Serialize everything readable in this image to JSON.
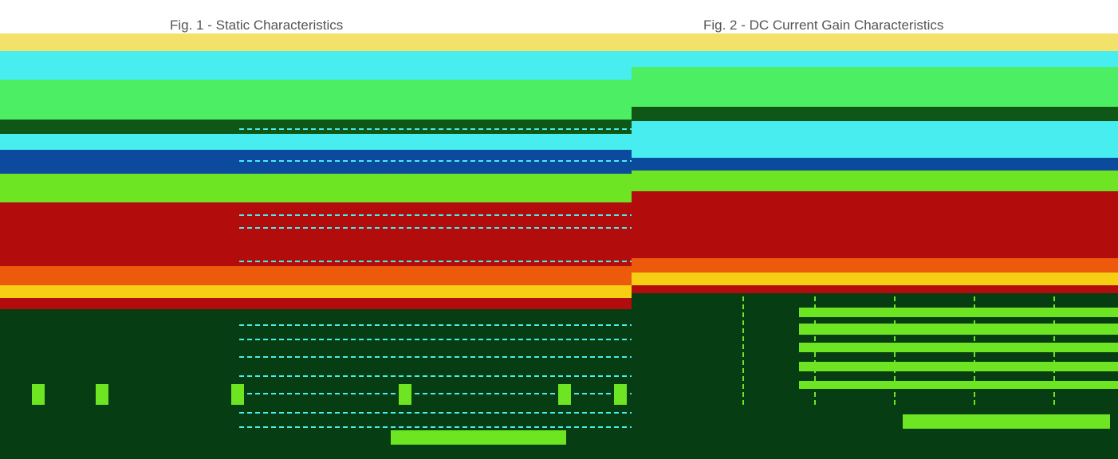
{
  "chart_data": [
    {
      "type": "heatmap",
      "title": "Fig. 1 - Static Characteristics",
      "grid": true,
      "colors": {
        "yellow": "#F2E26A",
        "cyan": "#47EDEF",
        "green": "#4CEF64",
        "dark_green": "#0F5716",
        "blue": "#0C4A9E",
        "lime": "#6DE523",
        "red": "#B30C0C",
        "orange": "#EE5A0C",
        "gold": "#F6CF14",
        "deep_green": "#063D12"
      }
    },
    {
      "type": "heatmap",
      "title": "Fig. 2 - DC Current Gain Characteristics",
      "grid": true,
      "colors": {
        "yellow": "#F2E26A",
        "cyan": "#47EDEF",
        "green": "#4CEF64",
        "dark_green": "#0F5716",
        "blue": "#0C4A9E",
        "lime": "#6DE523",
        "red": "#B30C0C",
        "orange": "#EE5A0C",
        "gold": "#F6CF14",
        "deep_green": "#063D12"
      }
    }
  ]
}
